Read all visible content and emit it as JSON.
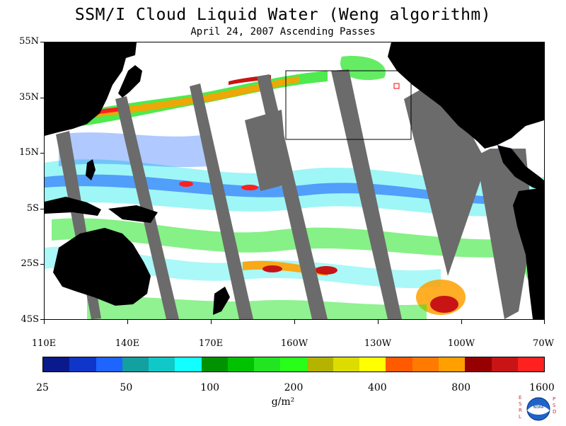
{
  "title": "SSM/I Cloud Liquid Water (Weng algorithm)",
  "subtitle": "April 24, 2007  Ascending Passes",
  "lat_labels": [
    "55N",
    "35N",
    "15N",
    "5S",
    "25S",
    "45S"
  ],
  "lon_labels": [
    "110E",
    "140E",
    "170E",
    "160W",
    "130W",
    "100W",
    "70W"
  ],
  "colorbar": {
    "colors": [
      "#0a1a8c",
      "#0f36c8",
      "#1e64ff",
      "#12a0a0",
      "#10c8c8",
      "#11ffff",
      "#009200",
      "#00c200",
      "#22e522",
      "#28ff18",
      "#b4b400",
      "#dcdc00",
      "#ffff00",
      "#ff5a00",
      "#ff7a00",
      "#ffa000",
      "#960000",
      "#c81414",
      "#ff2020"
    ],
    "tick_labels": [
      "25",
      "50",
      "100",
      "200",
      "400",
      "800",
      "1600"
    ],
    "units": "g/m²"
  },
  "colors": {
    "land": "#000000",
    "no_data_swath": "#6b6b6b",
    "ocean_clear": "#ffffff"
  },
  "logo": {
    "left_letters": "ESRL",
    "right_letters": "PSD",
    "name": "noaa-logo"
  }
}
